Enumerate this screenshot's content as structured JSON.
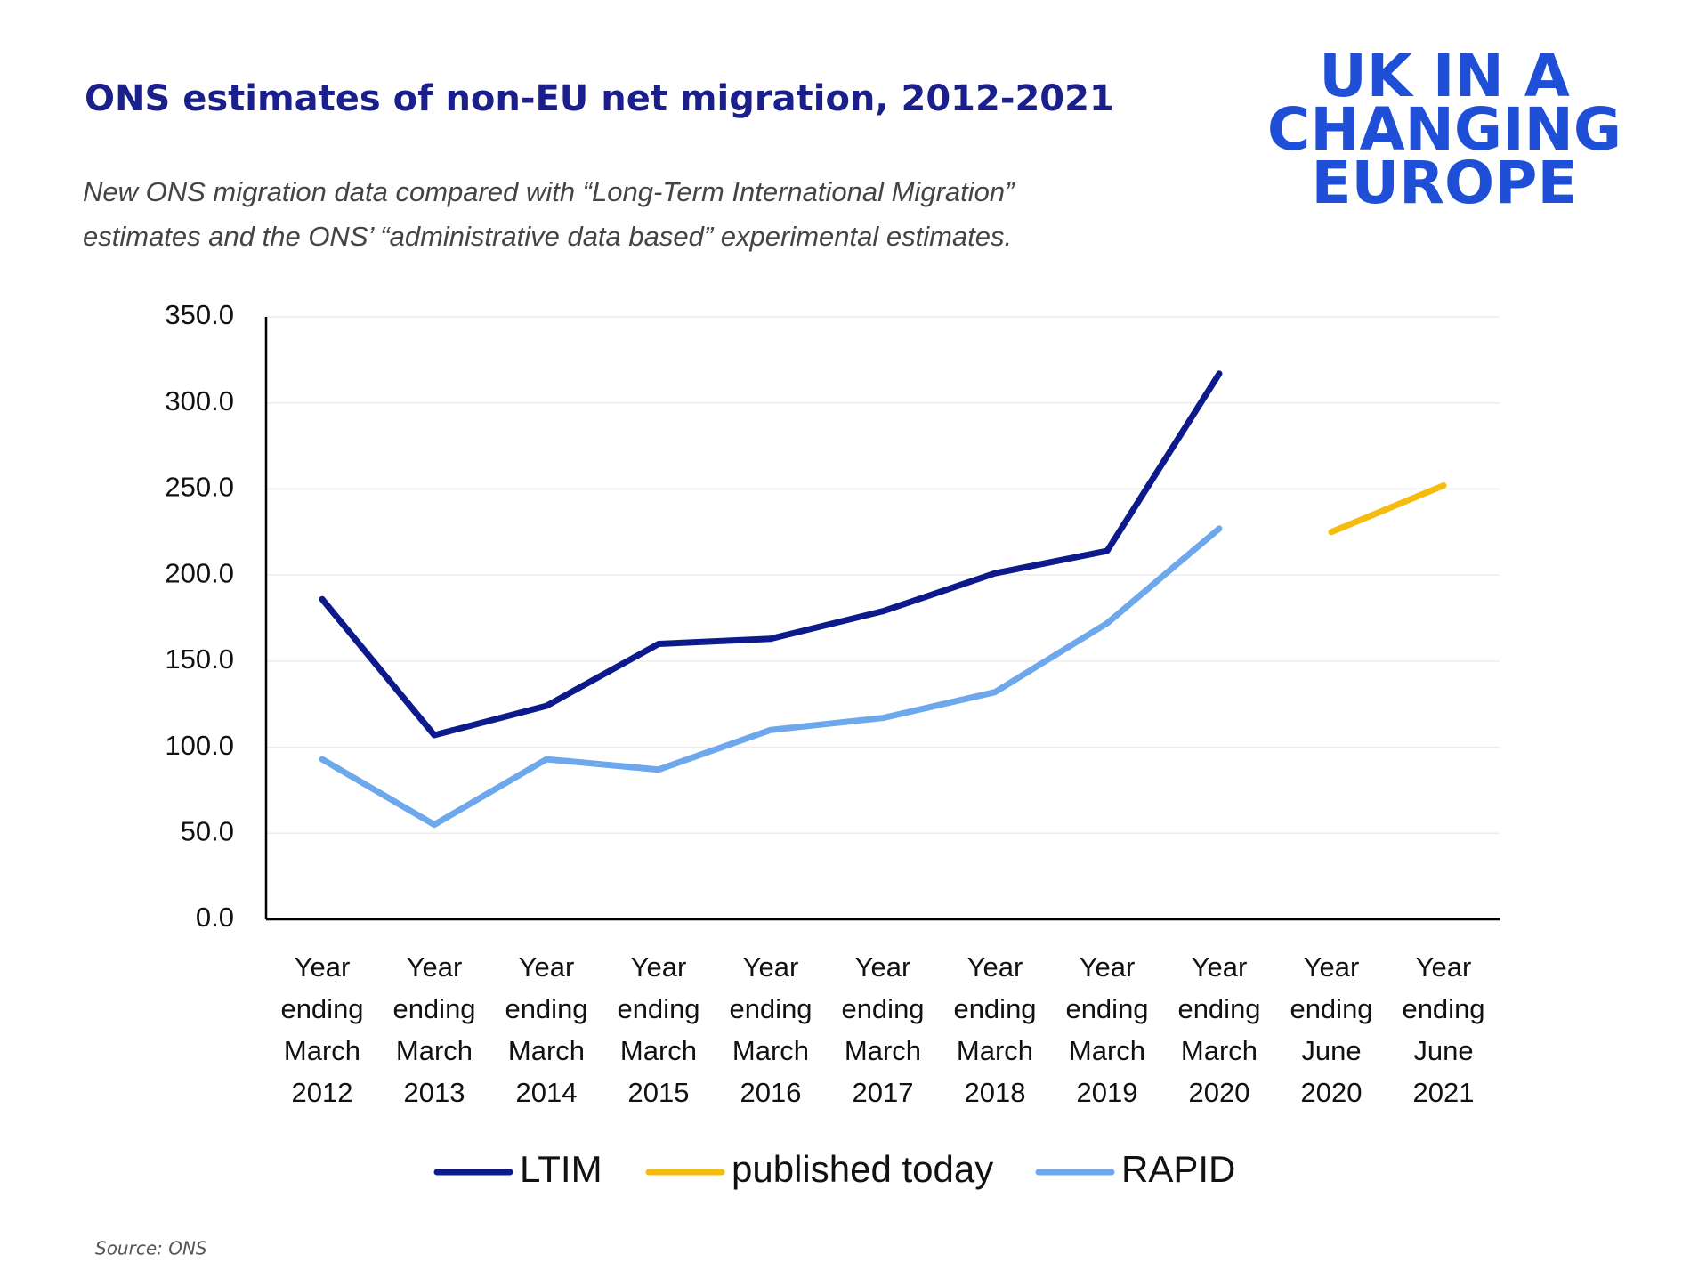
{
  "chart_data": {
    "type": "line",
    "title": "ONS estimates of non-EU net migration, 2012-2021",
    "subtitle": [
      "New ONS migration data compared with “Long-Term International Migration”",
      "estimates and the ONS’ “administrative data based” experimental estimates."
    ],
    "logo": [
      "UK IN A",
      "CHANGING",
      "EUROPE"
    ],
    "source": "Source: ONS",
    "categories": [
      "Year ending March 2012",
      "Year ending March 2013",
      "Year ending March 2014",
      "Year ending March 2015",
      "Year ending March 2016",
      "Year ending March 2017",
      "Year ending March 2018",
      "Year ending March 2019",
      "Year ending March 2020",
      "Year ending June 2020",
      "Year ending June 2021"
    ],
    "series": [
      {
        "name": "LTIM",
        "color": "#0d1a8c",
        "values": [
          186,
          107,
          124,
          160,
          163,
          179,
          201,
          214,
          317,
          null,
          null
        ]
      },
      {
        "name": "published today",
        "color": "#f6bb0f",
        "values": [
          null,
          null,
          null,
          null,
          null,
          null,
          null,
          null,
          null,
          225,
          252
        ]
      },
      {
        "name": "RAPID",
        "color": "#6ea8ec",
        "values": [
          93,
          55,
          93,
          87,
          110,
          117,
          132,
          172,
          227,
          null,
          null
        ]
      }
    ],
    "ylim": [
      0,
      350
    ],
    "yticks": [
      {
        "value": 0,
        "label": "0.0"
      },
      {
        "value": 50,
        "label": "50.0"
      },
      {
        "value": 100,
        "label": "100.0"
      },
      {
        "value": 150,
        "label": "150.0"
      },
      {
        "value": 200,
        "label": "200.0"
      },
      {
        "value": 250,
        "label": "250.0"
      },
      {
        "value": 300,
        "label": "300.0"
      },
      {
        "value": 350,
        "label": "350.0"
      }
    ],
    "grid": true,
    "legend": "bottom"
  }
}
